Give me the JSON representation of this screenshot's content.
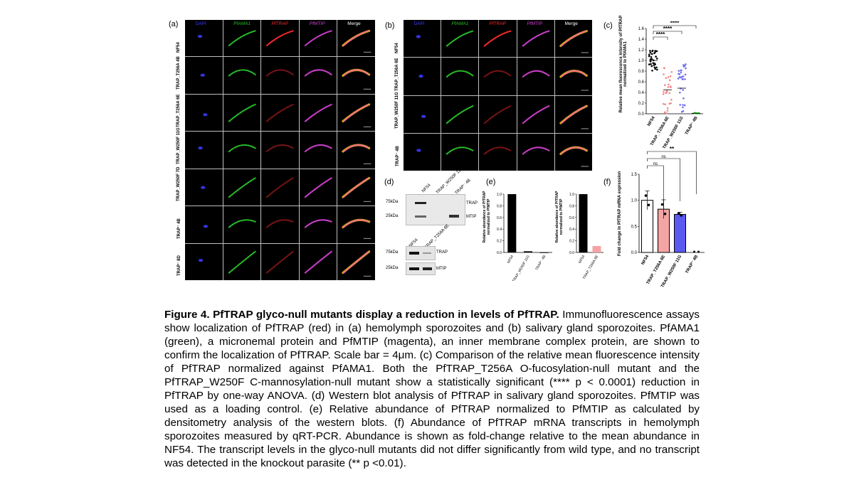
{
  "panel_a": {
    "letter": "(a)",
    "columns": [
      "DAPI",
      "PfAMA1",
      "PfTRAP",
      "PfMTIP",
      "Merge"
    ],
    "column_colors": [
      "#3b3bff",
      "#29c229",
      "#ff2a2a",
      "#d040d0",
      "#ffffff"
    ],
    "rows": [
      "NF54",
      "TRAP_T256A 4B",
      "TRAP_T256A 6E",
      "TRAP_W250F 11G",
      "TRAP_W250F 7D",
      "TRAP⁻ 4B",
      "TRAP⁻ 8D"
    ]
  },
  "panel_b": {
    "letter": "(b)",
    "columns": [
      "DAPI",
      "PfAMA1",
      "PfTRAP",
      "PfMTIP",
      "Merge"
    ],
    "rows": [
      "NF54",
      "TRAP_T256A 6E",
      "TRAP_W250F 11G",
      "TRAP⁻ 4B"
    ]
  },
  "panel_c": {
    "letter": "(c)",
    "ylabel": "Relative mean fluorescence intensity of PfTRAP normalized to PfAMA1",
    "significance": [
      "****",
      "****",
      "****"
    ]
  },
  "panel_d": {
    "letter": "(d)",
    "blot1": {
      "lanes": [
        "NF54",
        "TRAP_W250F 11G",
        "TRAP⁻ 4B"
      ],
      "markers": [
        "75kDa",
        "25kDa"
      ],
      "bands": [
        "TRAP",
        "MTIP"
      ]
    },
    "blot2": {
      "lanes": [
        "NF54",
        "TRAP_T256A 6E"
      ],
      "markers": [
        "75kDa",
        "25kDa"
      ],
      "bands": [
        "TRAP",
        "MTIP"
      ]
    }
  },
  "panel_e": {
    "letter": "(e)",
    "ylabel": "Relative abundance of PfTRAP normalized to PfMTIP"
  },
  "panel_f": {
    "letter": "(f)",
    "ylabel": "Fold change in PfTRAP mRNA expression",
    "significance": [
      "**",
      "ns",
      "ns"
    ]
  },
  "chart_data": [
    {
      "type": "scatter",
      "panel": "c",
      "categories": [
        "NF54",
        "TRAP_T256A 6E",
        "TRAP_W250F 11G",
        "TRAP⁻ 4B"
      ],
      "means": [
        1.0,
        0.45,
        0.48,
        0.01
      ],
      "colors": [
        "#000000",
        "#f08a8a",
        "#6f6ff0",
        "#2fbf2f"
      ],
      "ylim": [
        0,
        1.6
      ],
      "yticks": [
        "0.0",
        "0.2",
        "0.4",
        "0.6",
        "0.8",
        "1.0",
        "1.2",
        "1.4",
        "1.6"
      ],
      "ylabel": "Relative mean fluorescence intensity of PfTRAP normalized to PfAMA1"
    },
    {
      "type": "bar",
      "panel": "e",
      "categories": [
        "NF54",
        "TRAP_W250F 11G",
        "TRAP⁻ 4B"
      ],
      "values": [
        1.0,
        0.02,
        0.0
      ],
      "ylim": [
        0,
        1.0
      ],
      "yticks": [
        "0.0",
        "0.2",
        "0.4",
        "0.6",
        "0.8",
        "1.0"
      ],
      "ylabel": "Relative abundance of PfTRAP normalized to PfMTIP"
    },
    {
      "type": "bar",
      "panel": "e2",
      "categories": [
        "NF54",
        "TRAP_T256A 6E"
      ],
      "values": [
        1.0,
        0.11
      ],
      "colors": [
        "#000000",
        "#f4a4a4"
      ],
      "ylim": [
        0,
        1.0
      ],
      "yticks": [
        "0.0",
        "0.2",
        "0.4",
        "0.6",
        "0.8",
        "1.0"
      ],
      "ylabel": "Relative abundance of PfTRAP normalized to PfMTIP"
    },
    {
      "type": "bar",
      "panel": "f",
      "categories": [
        "NF54",
        "TRAP_T256A 6E",
        "TRAP_W250F 11G",
        "TRAP⁻ 4B"
      ],
      "values": [
        1.0,
        0.83,
        0.73,
        0.0
      ],
      "errors": [
        0.18,
        0.18,
        0.04,
        0.0
      ],
      "colors": [
        "#ffffff",
        "#f4a4a4",
        "#5a5af0",
        "#ffffff"
      ],
      "ylim": [
        0,
        1.5
      ],
      "yticks": [
        "0.0",
        "0.5",
        "1.0",
        "1.5"
      ],
      "ylabel": "Fold change in PfTRAP mRNA expression"
    }
  ],
  "caption": {
    "title": "Figure 4. PfTRAP glyco-null mutants display a reduction in levels of PfTRAP.",
    "body": "Immunofluorescence assays show localization of PfTRAP (red) in (a) hemolymph sporozoites and (b) salivary gland sporozoites. PfAMA1 (green), a micronemal protein and PfMTIP (magenta), an inner membrane complex protein, are shown to confirm the localization of PfTRAP. Scale bar = 4μm. (c) Comparison of the relative mean fluorescence intensity of PfTRAP normalized against PfAMA1. Both the PfTRAP_T256A O-fucosylation-null mutant and the PfTRAP_W250F C-mannosylation-null mutant show a statistically significant (**** p < 0.0001) reduction in PfTRAP by one-way ANOVA. (d) Western blot analysis of PfTRAP in salivary gland sporozoites. PfMTIP was used as a loading control. (e) Relative abundance of PfTRAP normalized to PfMTIP as calculated by densitometry analysis of the western blots. (f) Abundance of PfTRAP mRNA transcripts in hemolymph sporozoites measured by qRT-PCR. Abundance is shown as fold-change relative to the mean abundance in NF54. The transcript levels in the glyco-null mutants did not differ significantly from wild type, and no transcript was detected in the knockout parasite (** p <0.01)."
  }
}
